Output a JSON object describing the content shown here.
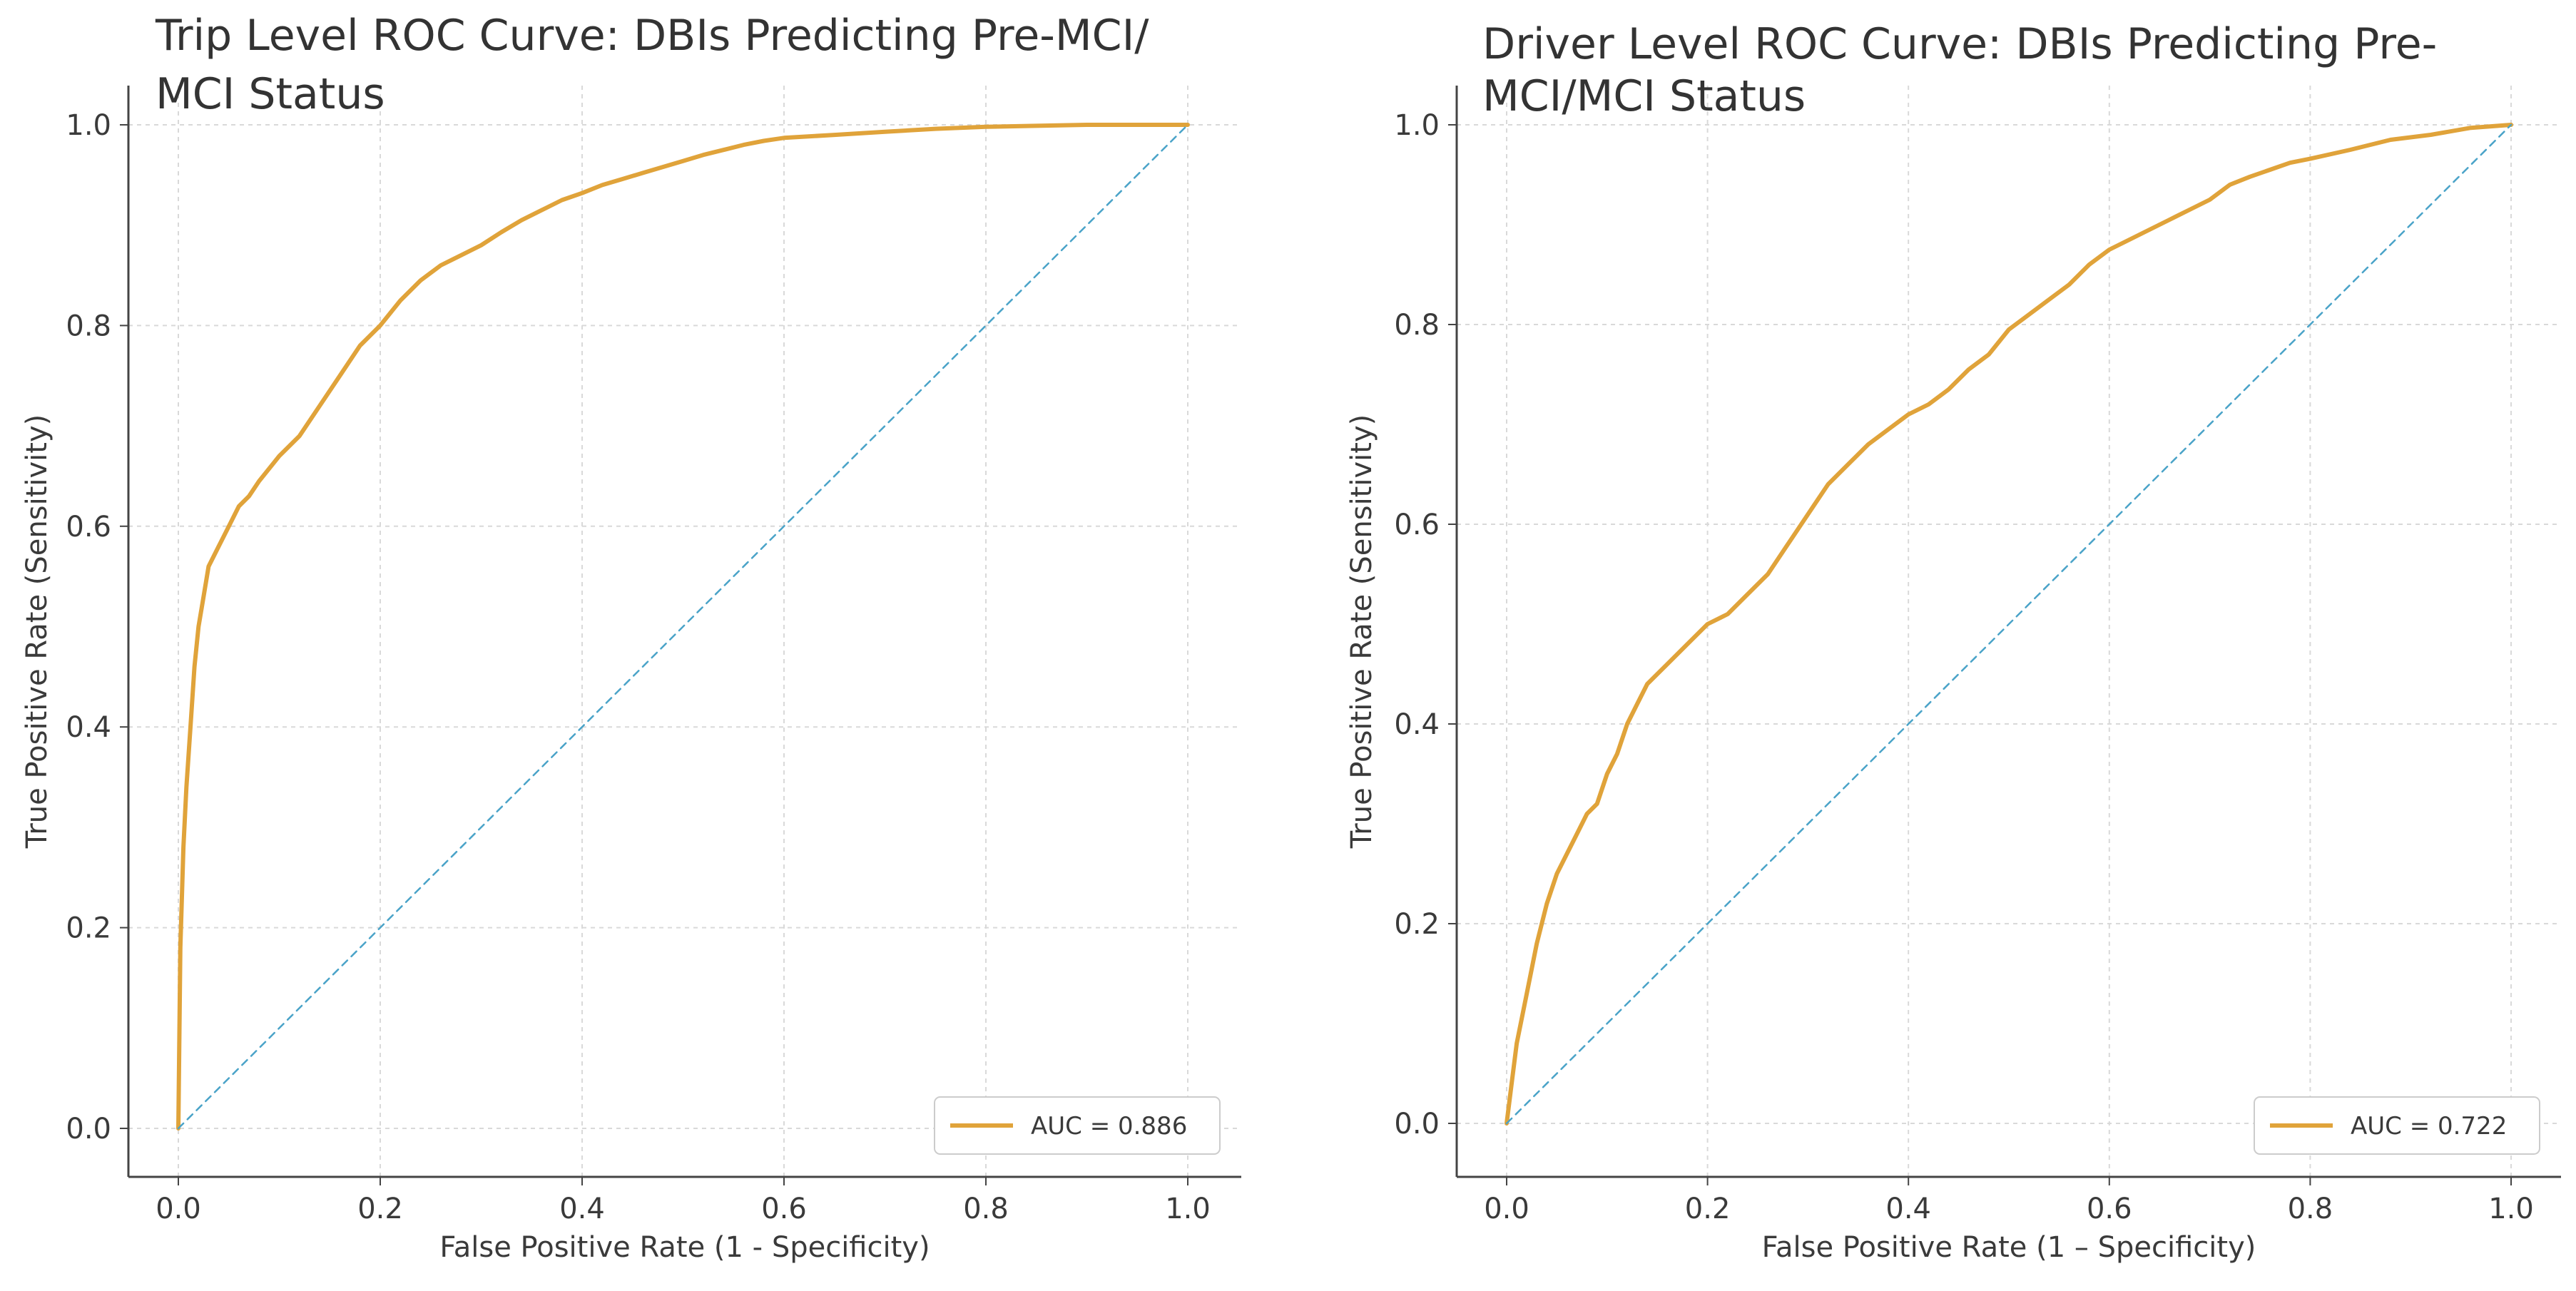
{
  "chart_data": [
    {
      "type": "line",
      "title": "Trip Level ROC Curve: DBIs Predicting Pre-MCI/ MCI Status",
      "title_lines": [
        "Trip Level ROC Curve: DBIs Predicting Pre-MCI/",
        "MCI Status"
      ],
      "xlabel": "False Positive Rate (1 - Specificity)",
      "ylabel": "True Positive Rate (Sensitivity)",
      "xlim": [
        0,
        1
      ],
      "ylim": [
        0,
        1
      ],
      "xticks": [
        "0.0",
        "0.2",
        "0.4",
        "0.6",
        "0.8",
        "1.0"
      ],
      "yticks": [
        "0.0",
        "0.2",
        "0.4",
        "0.6",
        "0.8",
        "1.0"
      ],
      "grid": true,
      "legend_position": "bottom-right",
      "series": [
        {
          "name": "AUC = 0.886",
          "color": "#e0a33a",
          "x": [
            0,
            0.002,
            0.005,
            0.008,
            0.012,
            0.016,
            0.02,
            0.025,
            0.03,
            0.04,
            0.05,
            0.06,
            0.07,
            0.08,
            0.1,
            0.12,
            0.14,
            0.16,
            0.18,
            0.2,
            0.22,
            0.24,
            0.26,
            0.28,
            0.3,
            0.32,
            0.34,
            0.36,
            0.38,
            0.4,
            0.42,
            0.44,
            0.46,
            0.48,
            0.5,
            0.52,
            0.54,
            0.56,
            0.58,
            0.6,
            0.65,
            0.7,
            0.75,
            0.8,
            0.85,
            0.9,
            0.95,
            1.0
          ],
          "y": [
            0,
            0.18,
            0.28,
            0.34,
            0.4,
            0.46,
            0.5,
            0.53,
            0.56,
            0.58,
            0.6,
            0.62,
            0.63,
            0.645,
            0.67,
            0.69,
            0.72,
            0.75,
            0.78,
            0.8,
            0.825,
            0.845,
            0.86,
            0.87,
            0.88,
            0.893,
            0.905,
            0.915,
            0.925,
            0.932,
            0.94,
            0.946,
            0.952,
            0.958,
            0.964,
            0.97,
            0.975,
            0.98,
            0.984,
            0.987,
            0.99,
            0.993,
            0.996,
            0.998,
            0.999,
            1.0,
            1.0,
            1.0
          ]
        },
        {
          "name": "chance",
          "color": "#4aa3c8",
          "style": "dashed",
          "x": [
            0,
            1
          ],
          "y": [
            0,
            1
          ]
        }
      ],
      "legend": [
        "AUC = 0.886"
      ]
    },
    {
      "type": "line",
      "title": "Driver Level ROC Curve: DBIs Predicting Pre-MCI/MCI Status",
      "title_lines": [
        "Driver Level ROC Curve: DBIs Predicting Pre-",
        "MCI/MCI Status"
      ],
      "xlabel": "False Positive Rate (1 – Specificity)",
      "ylabel": "True Positive Rate (Sensitivity)",
      "xlim": [
        0,
        1
      ],
      "ylim": [
        0,
        1
      ],
      "xticks": [
        "0.0",
        "0.2",
        "0.4",
        "0.6",
        "0.8",
        "1.0"
      ],
      "yticks": [
        "0.0",
        "0.2",
        "0.4",
        "0.6",
        "0.8",
        "1.0"
      ],
      "grid": true,
      "legend_position": "bottom-right",
      "series": [
        {
          "name": "AUC = 0.722",
          "color": "#e0a33a",
          "x": [
            0,
            0.005,
            0.01,
            0.02,
            0.03,
            0.04,
            0.05,
            0.06,
            0.07,
            0.08,
            0.09,
            0.1,
            0.11,
            0.12,
            0.13,
            0.14,
            0.15,
            0.16,
            0.18,
            0.2,
            0.22,
            0.24,
            0.26,
            0.28,
            0.3,
            0.32,
            0.34,
            0.36,
            0.38,
            0.4,
            0.42,
            0.44,
            0.46,
            0.48,
            0.5,
            0.52,
            0.54,
            0.56,
            0.58,
            0.6,
            0.62,
            0.64,
            0.66,
            0.68,
            0.7,
            0.72,
            0.74,
            0.76,
            0.78,
            0.8,
            0.84,
            0.88,
            0.92,
            0.96,
            1.0
          ],
          "y": [
            0,
            0.04,
            0.08,
            0.13,
            0.18,
            0.22,
            0.25,
            0.27,
            0.29,
            0.31,
            0.32,
            0.35,
            0.37,
            0.4,
            0.42,
            0.44,
            0.45,
            0.46,
            0.48,
            0.5,
            0.51,
            0.53,
            0.55,
            0.58,
            0.61,
            0.64,
            0.66,
            0.68,
            0.695,
            0.71,
            0.72,
            0.735,
            0.755,
            0.77,
            0.795,
            0.81,
            0.825,
            0.84,
            0.86,
            0.875,
            0.885,
            0.895,
            0.905,
            0.915,
            0.925,
            0.94,
            0.948,
            0.955,
            0.962,
            0.966,
            0.975,
            0.985,
            0.99,
            0.997,
            1.0
          ]
        },
        {
          "name": "chance",
          "color": "#4aa3c8",
          "style": "dashed",
          "x": [
            0,
            1
          ],
          "y": [
            0,
            1
          ]
        }
      ],
      "legend": [
        "AUC = 0.722"
      ]
    }
  ]
}
